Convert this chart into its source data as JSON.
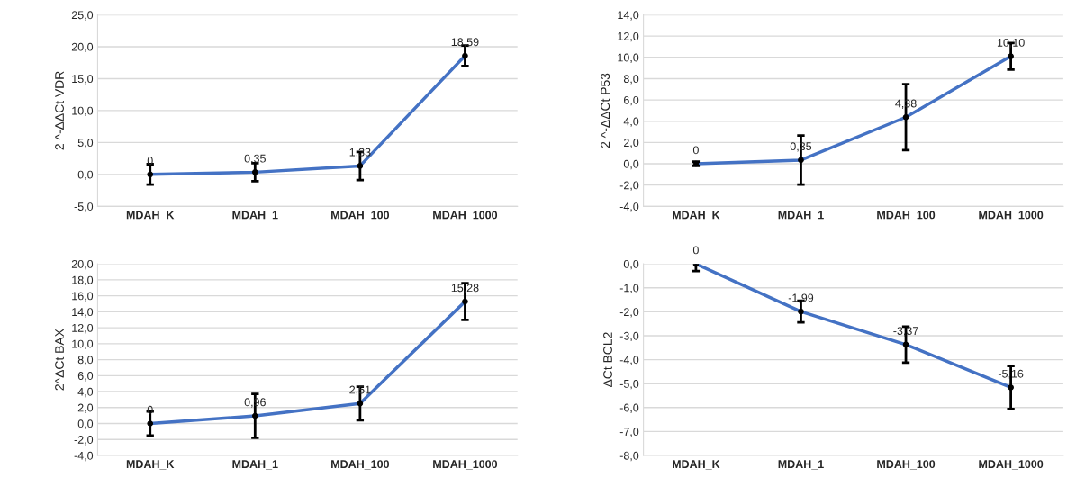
{
  "chart_data": [
    {
      "type": "line",
      "ylabel": "2 ^-ΔΔCt VDR",
      "categories": [
        "MDAH_K",
        "MDAH_1",
        "MDAH_100",
        "MDAH_1000"
      ],
      "color": "#4472c4",
      "marker": "circle",
      "grid": "y",
      "values": [
        0,
        0.35,
        1.33,
        18.59
      ],
      "errors": [
        1.6,
        1.4,
        2.2,
        1.6
      ],
      "value_labels": [
        "0",
        "0,35",
        "1,33",
        "18,59"
      ],
      "ylim": [
        -5,
        25
      ],
      "yticks": [
        {
          "value": -5,
          "label": "-5,0"
        },
        {
          "value": 0,
          "label": "0,0"
        },
        {
          "value": 5,
          "label": "5,0"
        },
        {
          "value": 10,
          "label": "10,0"
        },
        {
          "value": 15,
          "label": "15,0"
        },
        {
          "value": 20,
          "label": "20,0"
        },
        {
          "value": 25,
          "label": "25,0"
        }
      ]
    },
    {
      "type": "line",
      "ylabel": "2 ^-ΔΔCt P53",
      "categories": [
        "MDAH_K",
        "MDAH_1",
        "MDAH_100",
        "MDAH_1000"
      ],
      "color": "#4472c4",
      "marker": "circle",
      "grid": "y",
      "values": [
        0,
        0.35,
        4.38,
        10.1
      ],
      "errors": [
        0.2,
        2.3,
        3.1,
        1.25
      ],
      "value_labels": [
        "0",
        "0,35",
        "4,38",
        "10,10"
      ],
      "ylim": [
        -4,
        14
      ],
      "yticks": [
        {
          "value": -4,
          "label": "-4,0"
        },
        {
          "value": -2,
          "label": "-2,0"
        },
        {
          "value": 0,
          "label": "0,0"
        },
        {
          "value": 2,
          "label": "2,0"
        },
        {
          "value": 4,
          "label": "4,0"
        },
        {
          "value": 6,
          "label": "6,0"
        },
        {
          "value": 8,
          "label": "8,0"
        },
        {
          "value": 10,
          "label": "10,0"
        },
        {
          "value": 12,
          "label": "12,0"
        },
        {
          "value": 14,
          "label": "14,0"
        }
      ]
    },
    {
      "type": "line",
      "ylabel": "2^ΔCt BAX",
      "categories": [
        "MDAH_K",
        "MDAH_1",
        "MDAH_100",
        "MDAH_1000"
      ],
      "color": "#4472c4",
      "marker": "circle",
      "grid": "y",
      "values": [
        0,
        0.96,
        2.51,
        15.28
      ],
      "errors": [
        1.5,
        2.75,
        2.1,
        2.3
      ],
      "value_labels": [
        "0",
        "0,96",
        "2,51",
        "15,28"
      ],
      "ylim": [
        -4,
        20
      ],
      "yticks": [
        {
          "value": -4,
          "label": "-4,0"
        },
        {
          "value": -2,
          "label": "-2,0"
        },
        {
          "value": 0,
          "label": "0,0"
        },
        {
          "value": 2,
          "label": "2,0"
        },
        {
          "value": 4,
          "label": "4,0"
        },
        {
          "value": 6,
          "label": "6,0"
        },
        {
          "value": 8,
          "label": "8,0"
        },
        {
          "value": 10,
          "label": "10,0"
        },
        {
          "value": 12,
          "label": "12,0"
        },
        {
          "value": 14,
          "label": "14,0"
        },
        {
          "value": 16,
          "label": "16,0"
        },
        {
          "value": 18,
          "label": "18,0"
        },
        {
          "value": 20,
          "label": "20,0"
        }
      ]
    },
    {
      "type": "line",
      "ylabel": "ΔCt BCL2",
      "categories": [
        "MDAH_K",
        "MDAH_1",
        "MDAH_100",
        "MDAH_1000"
      ],
      "color": "#4472c4",
      "marker": "circle",
      "grid": "y",
      "values": [
        0,
        -1.99,
        -3.37,
        -5.16
      ],
      "errors": [
        0.3,
        0.45,
        0.75,
        0.9
      ],
      "value_labels": [
        "0",
        "-1,99",
        "-3,37",
        "-5,16"
      ],
      "ylim": [
        -8,
        0
      ],
      "yticks": [
        {
          "value": -8,
          "label": "-8,0"
        },
        {
          "value": -7,
          "label": "-7,0"
        },
        {
          "value": -6,
          "label": "-6,0"
        },
        {
          "value": -5,
          "label": "-5,0"
        },
        {
          "value": -4,
          "label": "-4,0"
        },
        {
          "value": -3,
          "label": "-3,0"
        },
        {
          "value": -2,
          "label": "-2,0"
        },
        {
          "value": -1,
          "label": "-1,0"
        },
        {
          "value": 0,
          "label": "0,0"
        }
      ]
    }
  ]
}
